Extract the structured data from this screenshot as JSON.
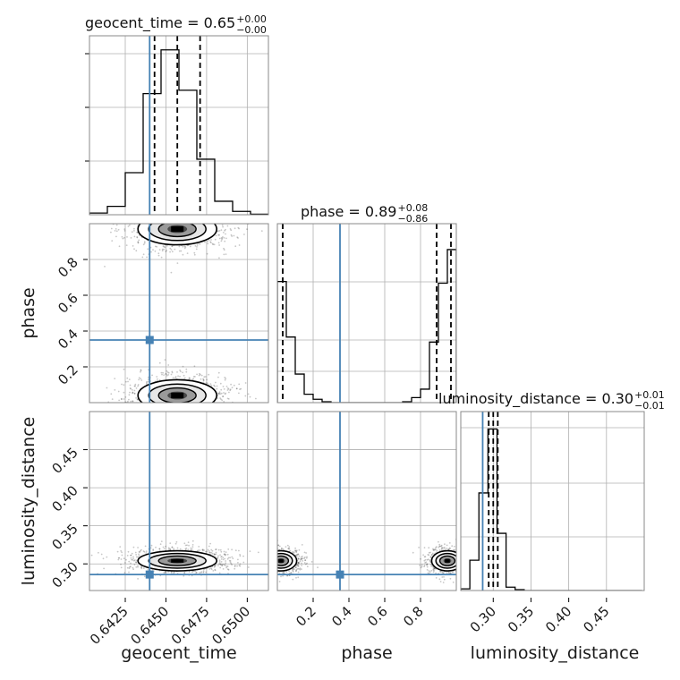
{
  "chart_data": {
    "type": "corner",
    "parameters": [
      "geocent_time",
      "phase",
      "luminosity_distance"
    ],
    "truths": {
      "geocent_time": 0.644,
      "phase": 0.35,
      "luminosity_distance": 0.286
    },
    "colors": {
      "truth": "#4682b4",
      "hist": "#000000",
      "grid": "#b0b0b0",
      "frame": "#888888"
    },
    "panels": {
      "geocent_time": {
        "title": {
          "main": "geocent_time = 0.65",
          "sup": "+0.00",
          "sub": "−0.00"
        },
        "xlim": [
          0.6403,
          0.6513
        ],
        "ticks": [
          0.6425,
          0.645,
          0.6475,
          0.65
        ],
        "tick_labels": [
          "0.6425",
          "0.6450",
          "0.6475",
          "0.6500"
        ],
        "quantiles": [
          0.6443,
          0.6457,
          0.6471
        ],
        "bins": [
          0.6403,
          0.6414,
          0.6425,
          0.6436,
          0.6447,
          0.6458,
          0.6469,
          0.648,
          0.6491,
          0.6502,
          0.6513
        ],
        "hist_levels": [
          0.01,
          0.05,
          0.25,
          0.72,
          0.98,
          0.74,
          0.33,
          0.08,
          0.02,
          0.003
        ]
      },
      "phase": {
        "title": {
          "main": "phase = 0.89",
          "sup": "+0.08",
          "sub": "−0.86"
        },
        "xlim": [
          0.0,
          1.0
        ],
        "ticks": [
          0.2,
          0.4,
          0.6,
          0.8
        ],
        "tick_labels": [
          "0.2",
          "0.4",
          "0.6",
          "0.8"
        ],
        "quantiles": [
          0.03,
          0.89,
          0.97
        ],
        "bins": [
          0.0,
          0.05,
          0.1,
          0.15,
          0.2,
          0.25,
          0.3,
          0.35,
          0.4,
          0.45,
          0.5,
          0.55,
          0.6,
          0.65,
          0.7,
          0.75,
          0.8,
          0.85,
          0.9,
          0.95,
          1.0
        ],
        "hist_levels": [
          0.72,
          0.39,
          0.17,
          0.05,
          0.02,
          0.005,
          0.0,
          0.0,
          0.0,
          0.0,
          0.0,
          0.0,
          0.0,
          0.0,
          0.005,
          0.03,
          0.08,
          0.36,
          0.71,
          0.91
        ]
      },
      "luminosity_distance": {
        "title": {
          "main": "luminosity_distance = 0.30",
          "sup": "+0.01",
          "sub": "−0.01"
        },
        "xlim": [
          0.257,
          0.5
        ],
        "ticks": [
          0.3,
          0.35,
          0.4,
          0.45
        ],
        "tick_labels": [
          "0.30",
          "0.35",
          "0.40",
          "0.45"
        ],
        "quantiles": [
          0.294,
          0.3,
          0.306
        ],
        "bins": [
          0.257,
          0.269,
          0.281,
          0.293,
          0.305,
          0.317,
          0.329,
          0.341,
          0.353,
          0.365,
          0.377,
          0.389,
          0.401,
          0.413,
          0.425,
          0.437,
          0.449,
          0.461,
          0.473,
          0.485,
          0.497
        ],
        "hist_levels": [
          0.01,
          0.18,
          0.58,
          0.96,
          0.34,
          0.02,
          0.005,
          0.0,
          0.0,
          0.0,
          0.0,
          0.0,
          0.0,
          0.0,
          0.0,
          0.0,
          0.0,
          0.0,
          0.0,
          0.0
        ]
      }
    },
    "scatter_2d": {
      "phase_vs_geocent_time": {
        "ylim": [
          0.0,
          1.0
        ],
        "yticks": [
          0.2,
          0.4,
          0.6,
          0.8
        ],
        "ytick_labels": [
          "0.2",
          "0.4",
          "0.6",
          "0.8"
        ],
        "clusters": [
          {
            "x": 0.6457,
            "y": 0.97,
            "sx": 0.0011,
            "sy": 0.04
          },
          {
            "x": 0.6457,
            "y": 0.04,
            "sx": 0.0011,
            "sy": 0.04
          }
        ]
      },
      "luminosity_distance_vs_geocent_time": {
        "ylim": [
          0.265,
          0.5
        ],
        "yticks": [
          0.3,
          0.35,
          0.4,
          0.45
        ],
        "ytick_labels": [
          "0.30",
          "0.35",
          "0.40",
          "0.45"
        ],
        "clusters": [
          {
            "x": 0.6457,
            "y": 0.304,
            "sx": 0.0011,
            "sy": 0.006
          }
        ]
      },
      "luminosity_distance_vs_phase": {
        "clusters": [
          {
            "x": 0.02,
            "y": 0.304,
            "sx": 0.04,
            "sy": 0.006
          },
          {
            "x": 0.95,
            "y": 0.304,
            "sx": 0.04,
            "sy": 0.006
          }
        ]
      }
    },
    "axis_labels": {
      "x": [
        "geocent_time",
        "phase",
        "luminosity_distance"
      ],
      "y": [
        "phase",
        "luminosity_distance"
      ]
    }
  }
}
